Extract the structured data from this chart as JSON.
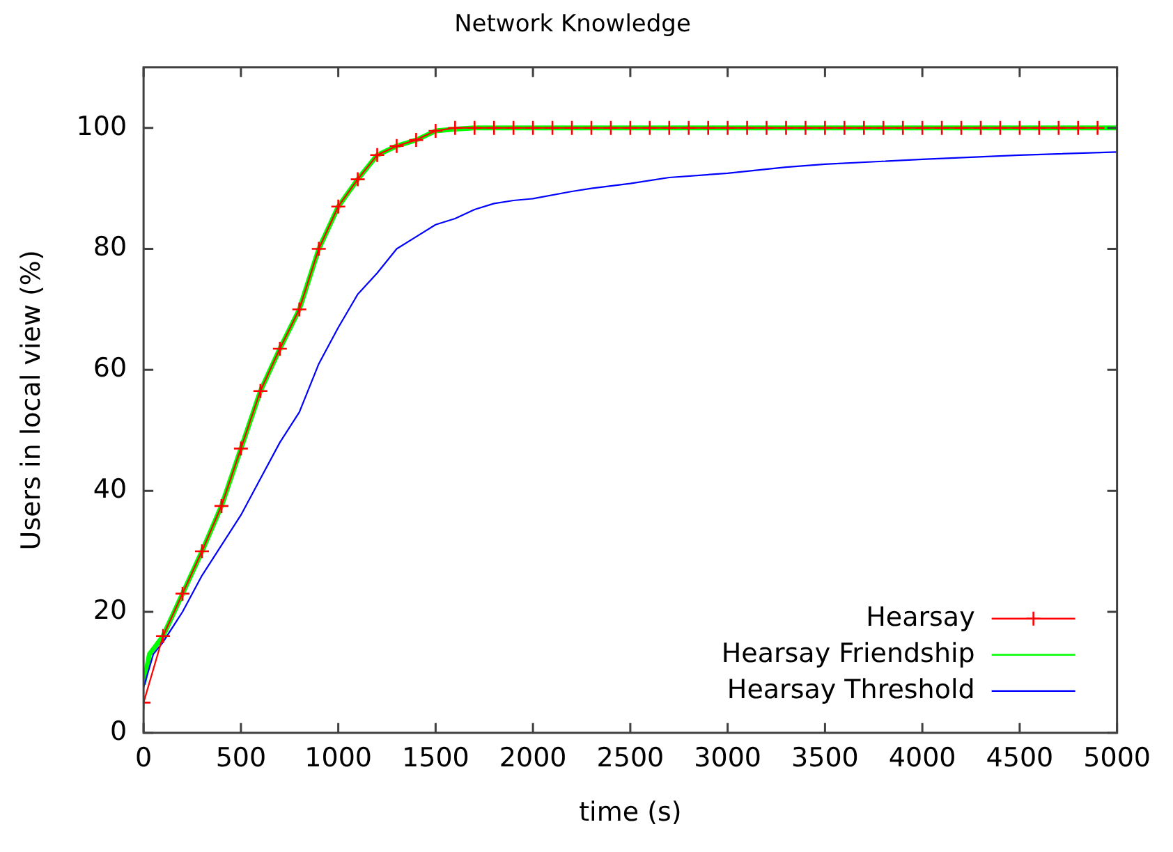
{
  "chart_data": {
    "type": "line",
    "title": "Network Knowledge",
    "xlabel": "time (s)",
    "ylabel": "Users in local view (%)",
    "xlim": [
      0,
      5000
    ],
    "xticks": [
      0,
      500,
      1000,
      1500,
      2000,
      2500,
      3000,
      3500,
      4000,
      4500,
      5000
    ],
    "ylim": [
      0,
      110
    ],
    "yticks": [
      0,
      20,
      40,
      60,
      80,
      100
    ],
    "grid": false,
    "legend": "bottom right",
    "series": [
      {
        "name": "Hearsay",
        "color": "#ff0000",
        "marker": "cross",
        "x": [
          0,
          100,
          200,
          300,
          400,
          500,
          600,
          700,
          800,
          900,
          1000,
          1100,
          1200,
          1300,
          1400,
          1500,
          1600,
          1700,
          1800,
          1900,
          2000,
          2100,
          2200,
          2300,
          2400,
          2500,
          2600,
          2700,
          2800,
          2900,
          3000,
          3100,
          3200,
          3300,
          3400,
          3500,
          3600,
          3700,
          3800,
          3900,
          4000,
          4100,
          4200,
          4300,
          4400,
          4500,
          4600,
          4700,
          4800,
          4900
        ],
        "values": [
          5,
          16,
          23,
          30,
          37.5,
          47,
          56.5,
          63.5,
          70,
          80,
          87,
          91.5,
          95.5,
          97,
          98,
          99.5,
          100,
          100,
          100,
          100,
          100,
          100,
          100,
          100,
          100,
          100,
          100,
          100,
          100,
          100,
          100,
          100,
          100,
          100,
          100,
          100,
          100,
          100,
          100,
          100,
          100,
          100,
          100,
          100,
          100,
          100,
          100,
          100,
          100,
          100
        ]
      },
      {
        "name": "Hearsay Friendship",
        "color": "#00ff00",
        "marker": "none",
        "x": [
          0,
          30,
          100,
          200,
          300,
          400,
          500,
          600,
          700,
          800,
          900,
          1000,
          1100,
          1200,
          1300,
          1400,
          1500,
          1600,
          1700,
          5000
        ],
        "values": [
          8,
          13,
          16,
          23,
          30,
          37.5,
          47,
          56.5,
          63.5,
          70,
          80,
          87,
          91.5,
          95.5,
          97,
          98,
          99.5,
          99.8,
          100,
          100
        ]
      },
      {
        "name": "Hearsay Threshold",
        "color": "#0000ff",
        "marker": "none",
        "x": [
          0,
          50,
          100,
          200,
          300,
          400,
          500,
          600,
          700,
          800,
          900,
          1000,
          1100,
          1200,
          1300,
          1400,
          1500,
          1600,
          1700,
          1800,
          1900,
          2000,
          2200,
          2300,
          2500,
          2700,
          3000,
          3300,
          3500,
          4000,
          4500,
          5000
        ],
        "values": [
          7.5,
          13,
          15,
          20,
          26,
          31,
          36,
          42,
          48,
          53,
          61,
          67,
          72.5,
          76,
          80,
          82,
          84,
          85,
          86.5,
          87.5,
          88,
          88.3,
          89.5,
          90,
          90.8,
          91.8,
          92.5,
          93.5,
          94,
          94.8,
          95.5,
          96
        ]
      }
    ]
  }
}
